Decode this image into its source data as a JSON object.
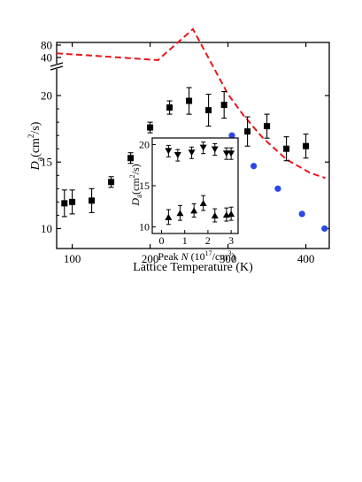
{
  "chart_data": [
    {
      "type": "scatter",
      "xlabel": "Lattice Temperature (K)",
      "ylabel_main": "D",
      "ylabel_sub": "a",
      "ylabel_unit": "(cm",
      "ylabel_sup": "2",
      "ylabel_tail": "/s)",
      "xlim": [
        80,
        430
      ],
      "xticks": [
        "100",
        "200",
        "300",
        "400"
      ],
      "xtick_values": [
        100,
        200,
        300,
        400
      ],
      "yticks": [
        "10",
        "15",
        "20"
      ],
      "ytick_values": [
        10,
        15,
        20
      ],
      "ylim_lower": [
        8.5,
        21.2
      ],
      "yticks_upper": [
        "40",
        "80"
      ],
      "ytick_values_upper": [
        40,
        80
      ],
      "series": [
        {
          "marker": "square",
          "color": "#000000",
          "x": [
            90,
            100,
            125,
            150,
            175,
            200,
            225,
            250,
            275,
            295,
            325,
            350,
            375,
            400
          ],
          "y": [
            11.9,
            12.0,
            12.1,
            13.5,
            15.3,
            17.6,
            19.1,
            19.6,
            18.9,
            19.3,
            17.3,
            17.7,
            16.0,
            16.2
          ],
          "err": [
            1.0,
            0.9,
            0.9,
            0.4,
            0.4,
            0.4,
            0.5,
            1.0,
            1.2,
            1.0,
            1.1,
            0.9,
            0.9,
            0.9
          ]
        },
        {
          "marker": "circle",
          "color": "#2b47e4",
          "x": [
            305,
            333,
            364,
            395,
            424
          ],
          "y": [
            17.0,
            14.7,
            13.0,
            11.1,
            10.0
          ]
        },
        {
          "type": "line",
          "style": "dashed",
          "color": "#e8161b",
          "x": [
            80,
            130,
            170,
            210,
            255,
            300,
            320,
            345,
            375,
            405,
            425
          ],
          "y": [
            50.5,
            44.0,
            39.0,
            34.5,
            25.0,
            20.1,
            18.5,
            16.8,
            15.2,
            14.2,
            13.8
          ]
        }
      ]
    },
    {
      "type": "scatter",
      "inset": true,
      "xlabel_pre": "Peak ",
      "xlabel_var": "N",
      "xlabel_unit": " (10",
      "xlabel_sup": "17",
      "xlabel_tail": "/cm",
      "xlabel_sup2": "3",
      "xlabel_close": ")",
      "ylabel_main": "D",
      "ylabel_sub": "a",
      "ylabel_unit": "(cm",
      "ylabel_sup": "2",
      "ylabel_tail": "/s)",
      "xlim": [
        -0.4,
        3.3
      ],
      "ylim": [
        9.2,
        20.8
      ],
      "xticks": [
        "0",
        "1",
        "2",
        "3"
      ],
      "xtick_values": [
        0,
        1,
        2,
        3
      ],
      "yticks": [
        "10",
        "15",
        "20"
      ],
      "ytick_values": [
        10,
        15,
        20
      ],
      "series": [
        {
          "marker": "triangle-down",
          "color": "#000000",
          "x": [
            0.3,
            0.7,
            1.3,
            1.8,
            2.3,
            2.8,
            3.0
          ],
          "y": [
            19.2,
            18.7,
            19.0,
            19.6,
            19.4,
            18.9,
            18.9
          ],
          "err": [
            0.7,
            0.7,
            0.7,
            0.7,
            0.7,
            0.7,
            0.7
          ]
        },
        {
          "marker": "triangle-up",
          "color": "#000000",
          "x": [
            0.3,
            0.8,
            1.4,
            1.8,
            2.3,
            2.8,
            3.0
          ],
          "y": [
            11.2,
            11.7,
            12.0,
            12.9,
            11.4,
            11.5,
            11.6
          ],
          "err": [
            0.9,
            0.9,
            0.8,
            0.9,
            0.8,
            0.8,
            0.8
          ]
        }
      ]
    }
  ]
}
